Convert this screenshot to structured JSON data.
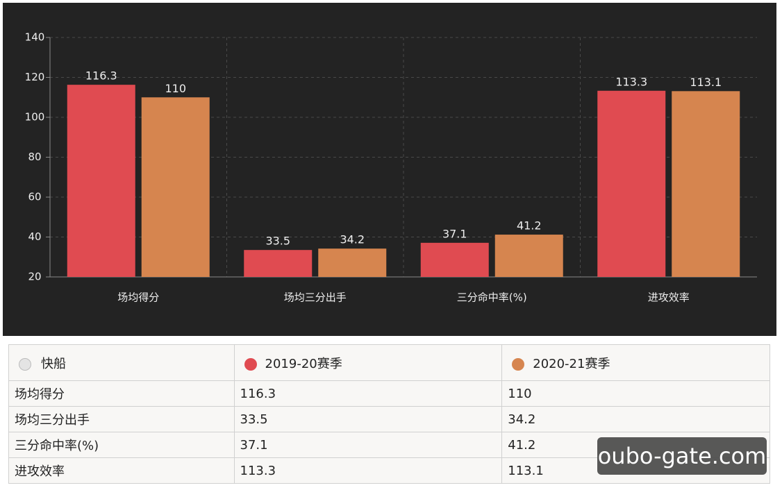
{
  "chart_data": {
    "type": "bar",
    "categories": [
      "场均得分",
      "场均三分出手",
      "三分命中率(%)",
      "进攻效率"
    ],
    "series": [
      {
        "name": "2019-20赛季",
        "color": "#e04b51",
        "values": [
          116.3,
          33.5,
          37.1,
          113.3
        ]
      },
      {
        "name": "2020-21赛季",
        "color": "#d6854f",
        "values": [
          110,
          34.2,
          41.2,
          113.1
        ]
      }
    ],
    "ylim": [
      20,
      140
    ],
    "yticks": [
      20,
      40,
      60,
      80,
      100,
      120,
      140
    ],
    "grid": true
  },
  "table": {
    "corner": "快船"
  },
  "watermark": "oubo-gate.com"
}
